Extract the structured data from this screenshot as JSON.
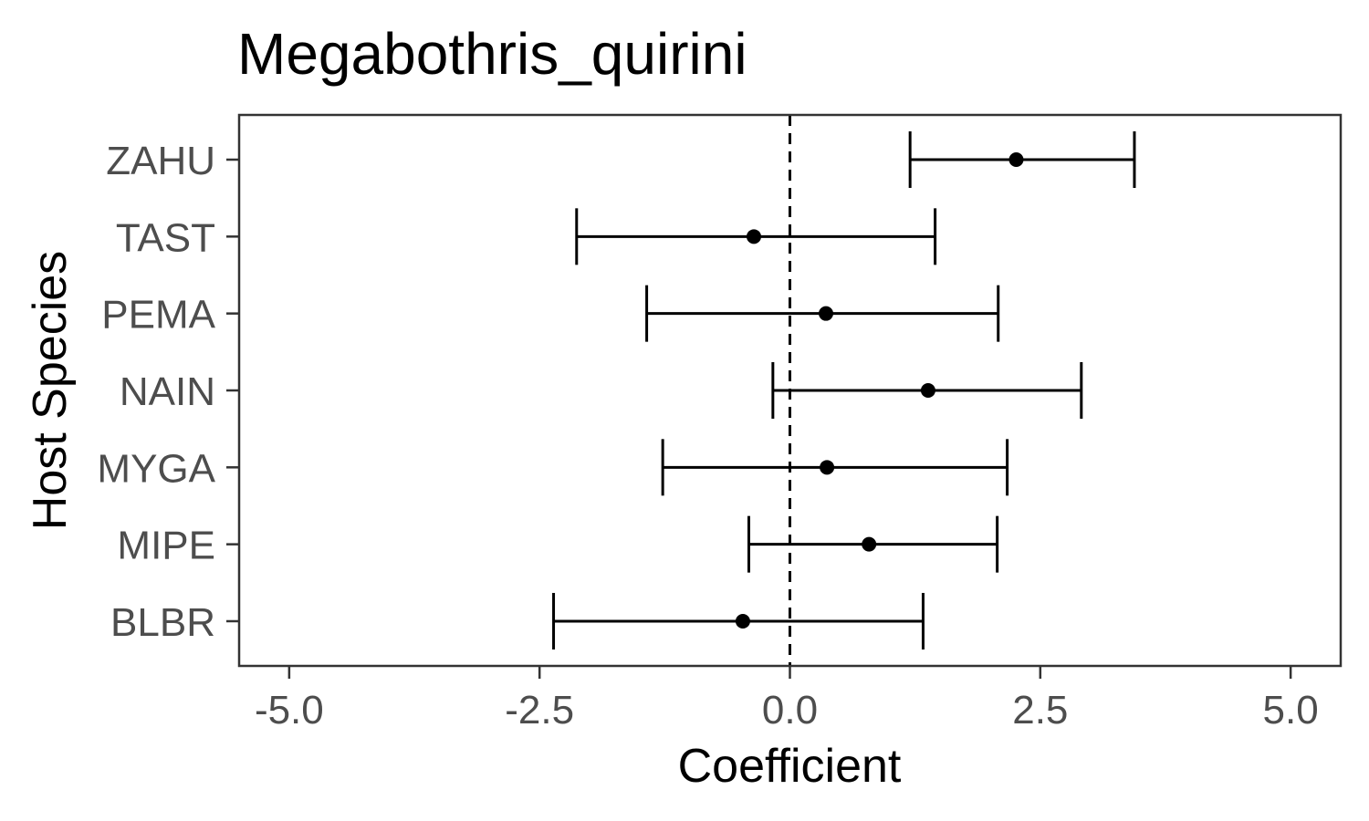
{
  "chart_data": {
    "type": "errorbar",
    "title": "Megabothris_quirini",
    "xlabel": "Coefficient",
    "ylabel": "Host Species",
    "xlim": [
      -5.5,
      5.5
    ],
    "x_ticks": [
      -5.0,
      -2.5,
      0.0,
      2.5,
      5.0
    ],
    "x_tick_labels": [
      "-5.0",
      "-2.5",
      "0.0",
      "2.5",
      "5.0"
    ],
    "reference_line": {
      "x": 0.0,
      "style": "dashed"
    },
    "grid": false,
    "categories": [
      "BLBR",
      "MIPE",
      "MYGA",
      "NAIN",
      "PEMA",
      "TAST",
      "ZAHU"
    ],
    "series": [
      {
        "estimate": [
          -0.47,
          0.79,
          0.37,
          1.38,
          0.36,
          -0.36,
          2.26
        ],
        "lower": [
          -2.36,
          -0.41,
          -1.27,
          -0.17,
          -1.43,
          -2.13,
          1.2
        ],
        "upper": [
          1.33,
          2.07,
          2.17,
          2.91,
          2.08,
          1.45,
          3.44
        ]
      }
    ],
    "colors": {
      "marks": "#000000",
      "axis": "#333333",
      "tick_text": "#4d4d4d"
    }
  }
}
